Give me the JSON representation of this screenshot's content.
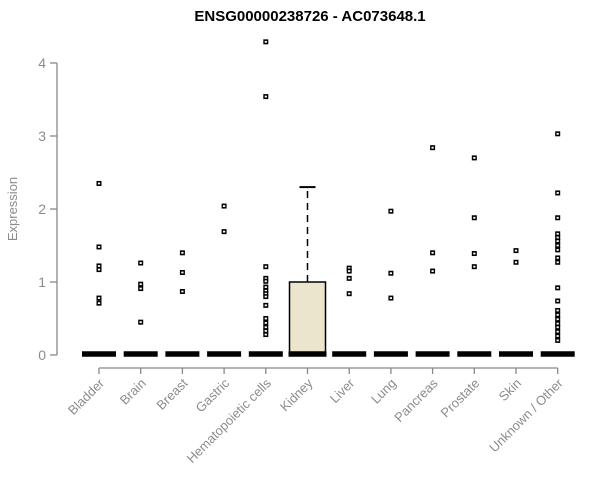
{
  "chart_data": {
    "type": "boxplot",
    "title": "ENSG00000238726 - AC073648.1",
    "ylabel": "Expression",
    "xlabel": "",
    "ylim": [
      0,
      4.45
    ],
    "yticks": [
      0,
      1,
      2,
      3,
      4
    ],
    "grid": false,
    "x_tick_rotation": 45,
    "categories": [
      "Bladder",
      "Brain",
      "Breast",
      "Gastric",
      "Hematopoietic cells",
      "Kidney",
      "Liver",
      "Lung",
      "Pancreas",
      "Prostate",
      "Skin",
      "Unknown / Other"
    ],
    "boxes": [
      {
        "category": "Bladder",
        "median": 0,
        "q1": 0,
        "q3": 0,
        "whisker_low": 0,
        "whisker_high": 0,
        "outliers": [
          2.35,
          1.48,
          1.22,
          1.17,
          0.78,
          0.71
        ]
      },
      {
        "category": "Brain",
        "median": 0,
        "q1": 0,
        "q3": 0,
        "whisker_low": 0,
        "whisker_high": 0,
        "outliers": [
          1.26,
          0.97,
          0.91,
          0.45
        ]
      },
      {
        "category": "Breast",
        "median": 0,
        "q1": 0,
        "q3": 0,
        "whisker_low": 0,
        "whisker_high": 0,
        "outliers": [
          1.4,
          1.13,
          0.87
        ]
      },
      {
        "category": "Gastric",
        "median": 0,
        "q1": 0,
        "q3": 0,
        "whisker_low": 0,
        "whisker_high": 0,
        "outliers": [
          2.04,
          1.69
        ]
      },
      {
        "category": "Hematopoietic cells",
        "median": 0,
        "q1": 0,
        "q3": 0,
        "whisker_low": 0,
        "whisker_high": 0,
        "outliers": [
          4.29,
          3.54,
          1.21,
          1.05,
          1.01,
          0.93,
          0.88,
          0.84,
          0.8,
          0.68,
          0.5,
          0.44,
          0.38,
          0.33,
          0.28
        ]
      },
      {
        "category": "Kidney",
        "median": 0,
        "q1": 0,
        "q3": 1.0,
        "whisker_low": 0,
        "whisker_high": 2.3,
        "outliers": []
      },
      {
        "category": "Liver",
        "median": 0,
        "q1": 0,
        "q3": 0,
        "whisker_low": 0,
        "whisker_high": 0,
        "outliers": [
          1.19,
          1.15,
          1.05,
          0.84
        ]
      },
      {
        "category": "Lung",
        "median": 0,
        "q1": 0,
        "q3": 0,
        "whisker_low": 0,
        "whisker_high": 0,
        "outliers": [
          1.97,
          1.12,
          0.78
        ]
      },
      {
        "category": "Pancreas",
        "median": 0,
        "q1": 0,
        "q3": 0,
        "whisker_low": 0,
        "whisker_high": 0,
        "outliers": [
          2.84,
          1.4,
          1.15
        ]
      },
      {
        "category": "Prostate",
        "median": 0,
        "q1": 0,
        "q3": 0,
        "whisker_low": 0,
        "whisker_high": 0,
        "outliers": [
          2.7,
          1.88,
          1.39,
          1.21
        ]
      },
      {
        "category": "Skin",
        "median": 0,
        "q1": 0,
        "q3": 0,
        "whisker_low": 0,
        "whisker_high": 0,
        "outliers": [
          1.43,
          1.27
        ]
      },
      {
        "category": "Unknown / Other",
        "median": 0,
        "q1": 0,
        "q3": 0,
        "whisker_low": 0,
        "whisker_high": 0,
        "outliers": [
          3.03,
          2.22,
          1.88,
          1.66,
          1.61,
          1.56,
          1.5,
          1.44,
          1.33,
          1.27,
          0.92,
          0.74,
          0.61,
          0.55,
          0.49,
          0.43,
          0.38,
          0.32,
          0.26,
          0.2
        ]
      }
    ],
    "colors": {
      "background": "#ffffff",
      "title": "#000000",
      "axis": "#898989",
      "tick_label": "#8c8c8c",
      "box_fill": "#ece5ce",
      "box_stroke": "#000000",
      "median": "#000000",
      "point": "#000000"
    }
  }
}
